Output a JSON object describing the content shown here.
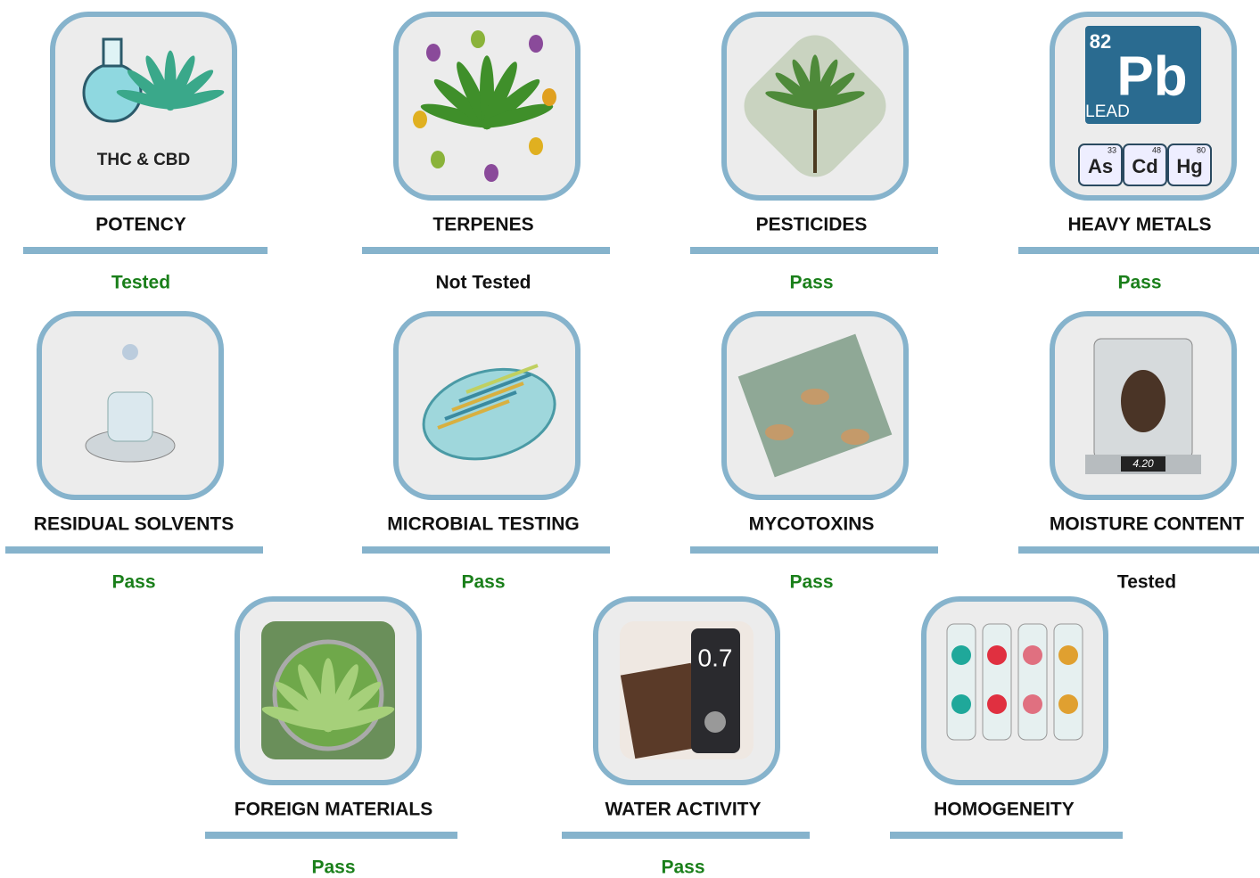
{
  "tiles": [
    {
      "label": "POTENCY",
      "status": "Tested",
      "status_color": "#1a7f1a",
      "icon_texts": [
        "THC & CBD"
      ]
    },
    {
      "label": "TERPENES",
      "status": "Not Tested",
      "status_color": "#111111"
    },
    {
      "label": "PESTICIDES",
      "status": "Pass",
      "status_color": "#1a7f1a"
    },
    {
      "label": "HEAVY METALS",
      "status": "Pass",
      "status_color": "#1a7f1a",
      "icon_texts": [
        "82",
        "Pb",
        "LEAD",
        "As",
        "Cd",
        "Hg",
        "33",
        "48",
        "80"
      ]
    },
    {
      "label": "RESIDUAL SOLVENTS",
      "status": "Pass",
      "status_color": "#1a7f1a"
    },
    {
      "label": "MICROBIAL TESTING",
      "status": "Pass",
      "status_color": "#1a7f1a"
    },
    {
      "label": "MYCOTOXINS",
      "status": "Pass",
      "status_color": "#1a7f1a"
    },
    {
      "label": "MOISTURE CONTENT",
      "status": "Tested",
      "status_color": "#111111",
      "icon_texts": [
        "4.20"
      ]
    },
    {
      "label": "FOREIGN MATERIALS",
      "status": "Pass",
      "status_color": "#1a7f1a"
    },
    {
      "label": "WATER ACTIVITY",
      "status": "Pass",
      "status_color": "#1a7f1a",
      "icon_texts": [
        "0.7"
      ]
    },
    {
      "label": "HOMOGENEITY"
    }
  ]
}
